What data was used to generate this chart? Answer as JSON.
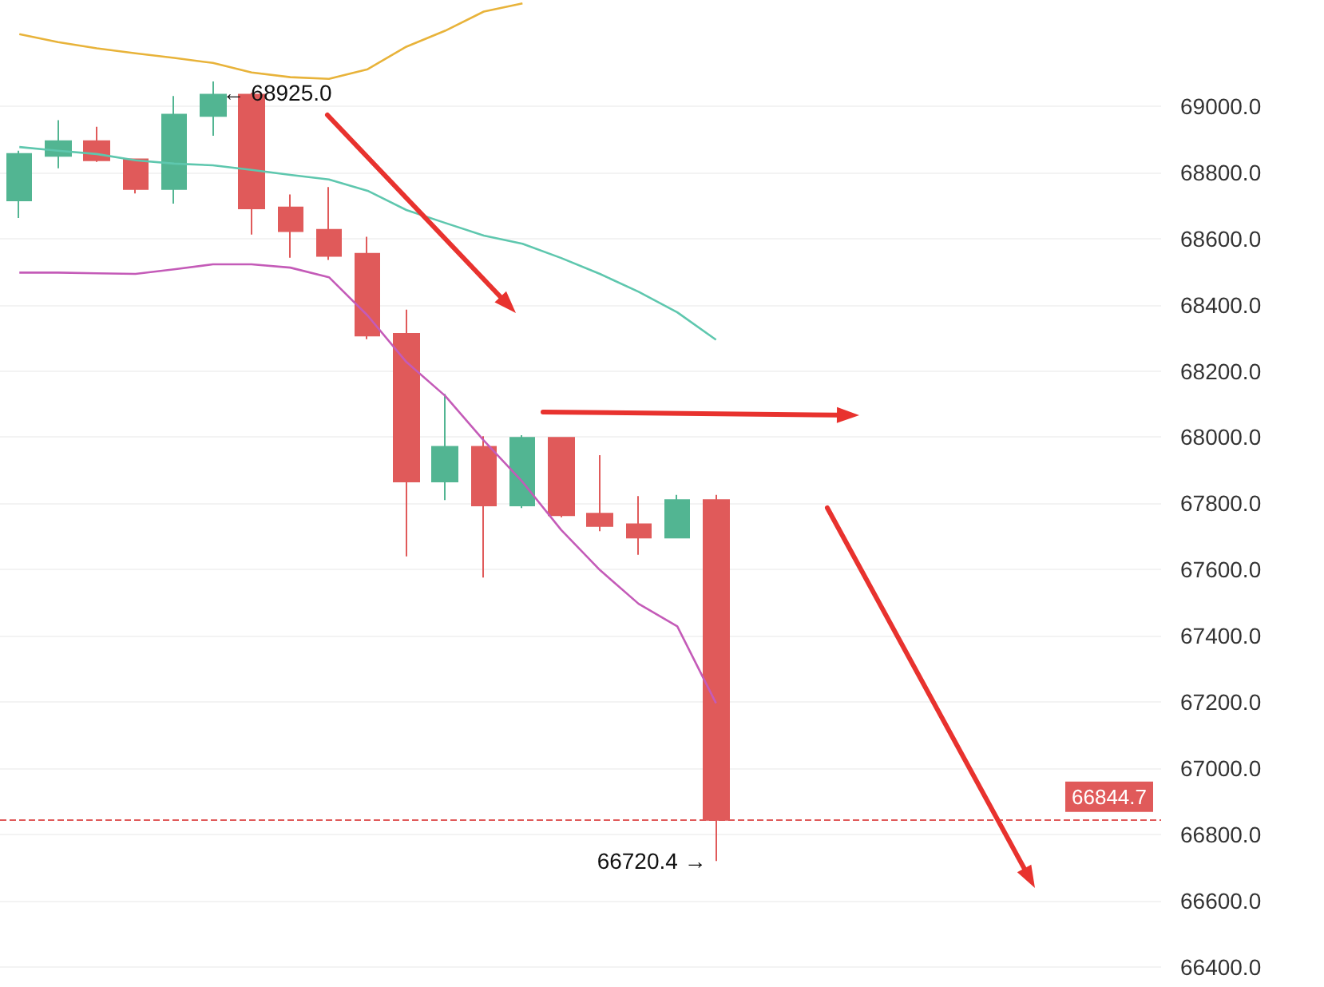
{
  "chart_data": {
    "type": "candlestick",
    "categories": [
      null,
      null,
      null,
      null,
      null,
      null,
      null,
      null,
      null,
      null,
      null,
      null,
      null,
      null,
      null,
      null,
      null,
      null,
      null,
      null,
      null,
      null,
      null,
      null,
      null,
      null,
      null,
      null,
      null,
      null
    ],
    "ohlc": [
      [
        68715,
        68865,
        68662,
        68855
      ],
      [
        68849,
        68957,
        68812,
        68894
      ],
      [
        68894,
        68937,
        68831,
        68836
      ],
      [
        68839,
        68839,
        68736,
        68749
      ],
      [
        68749,
        69030,
        68705,
        68974
      ],
      [
        68970,
        69074,
        68910,
        69034
      ],
      [
        69034,
        69040,
        68612,
        68691
      ],
      [
        68694,
        68733,
        68542,
        68622
      ],
      [
        68626,
        68755,
        68535,
        68547
      ],
      [
        68554,
        68605,
        68296,
        68307
      ],
      [
        68312,
        68385,
        67640,
        67866
      ],
      [
        67866,
        68131,
        67810,
        67971
      ],
      [
        67971,
        68003,
        67576,
        67794
      ],
      [
        67794,
        68006,
        67786,
        67998
      ],
      [
        67998,
        67998,
        67758,
        67764
      ],
      [
        67769,
        67946,
        67716,
        67732
      ],
      [
        67737,
        67822,
        67645,
        67697
      ],
      [
        67697,
        67826,
        67697,
        67810
      ],
      [
        67810,
        67826,
        66720.4,
        66844.7
      ],
      null,
      null,
      null,
      null,
      null,
      null,
      null,
      null,
      null,
      null,
      null
    ],
    "colors": [
      "#52b592",
      "#52b592",
      "#e05a5a",
      "#e05a5a",
      "#52b592",
      "#52b592",
      "#e05a5a",
      "#e05a5a",
      "#e05a5a",
      "#e05a5a",
      "#e05a5a",
      "#52b592",
      "#e05a5a",
      "#52b592",
      "#e05a5a",
      "#e05a5a",
      "#e05a5a",
      "#52b592",
      "#e05a5a",
      null,
      null,
      null,
      null,
      null,
      null,
      null,
      null,
      null,
      null,
      null
    ],
    "series": [
      {
        "type": "line",
        "color": "#e8b33a",
        "values": [
          69217,
          69193,
          69174,
          69159,
          69145,
          69130,
          69101,
          69087,
          69082,
          69111,
          69179,
          69227,
          69285,
          69310,
          null,
          null,
          null,
          null,
          null,
          null,
          null,
          null,
          null,
          null,
          null,
          null,
          null,
          null,
          null,
          null
        ]
      },
      {
        "type": "line",
        "color": "#5ec7ae",
        "values": [
          68876,
          68865,
          68855,
          68836,
          68826,
          68821,
          68807,
          68792,
          68778,
          68744,
          68686,
          68647,
          68609,
          68584,
          68541,
          68493,
          68439,
          68377,
          68294,
          null,
          null,
          null,
          null,
          null,
          null,
          null,
          null,
          null,
          null,
          null
        ]
      },
      {
        "type": "line",
        "color": "#c45bb8",
        "values": [
          68497,
          68497,
          68495,
          68493,
          68507,
          68522,
          68522,
          68512,
          68483,
          68367,
          68227,
          68125,
          67990,
          67865,
          67720,
          67599,
          67497,
          67429,
          67197,
          null,
          null,
          null,
          null,
          null,
          null,
          null,
          null,
          null,
          null,
          null
        ]
      }
    ],
    "ylim": [
      66340,
      69320
    ],
    "yticks": [
      {
        "value": 66400,
        "label": "66400.0"
      },
      {
        "value": 66600,
        "label": "66600.0"
      },
      {
        "value": 66800,
        "label": "66800.0"
      },
      {
        "value": 67000,
        "label": "67000.0"
      },
      {
        "value": 67200,
        "label": "67200.0"
      },
      {
        "value": 67400,
        "label": "67400.0"
      },
      {
        "value": 67600,
        "label": "67600.0"
      },
      {
        "value": 67800,
        "label": "67800.0"
      },
      {
        "value": 68000,
        "label": "68000.0"
      },
      {
        "value": 68200,
        "label": "68200.0"
      },
      {
        "value": 68400,
        "label": "68400.0"
      },
      {
        "value": 68600,
        "label": "68600.0"
      },
      {
        "value": 68800,
        "label": "68800.0"
      },
      {
        "value": 69000,
        "label": "69000.0"
      }
    ],
    "grid": "y",
    "tick_labels": "y",
    "marker": "none",
    "ref_lines": [
      {
        "axis": "y",
        "value": 66844.7,
        "label": "66844.7",
        "color": "#e05a5a",
        "line_style": "dashed"
      }
    ],
    "annotations": [
      "← 68925.0",
      "66720.4 →"
    ]
  }
}
